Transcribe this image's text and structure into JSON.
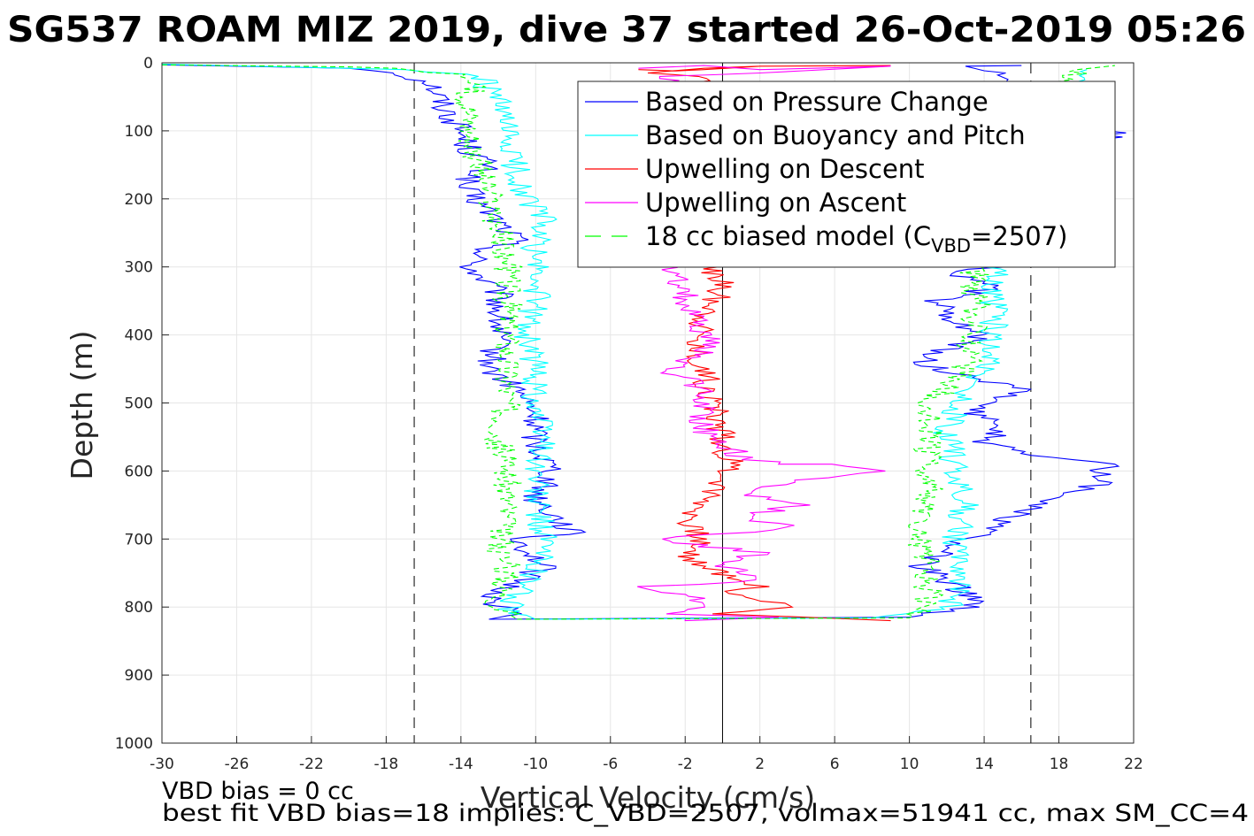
{
  "chart_data": {
    "type": "line",
    "title": "SG537 ROAM MIZ 2019, dive 37 started 26-Oct-2019 05:26",
    "xlabel": "Vertical Velocity (cm/s)",
    "ylabel": "Depth (m)",
    "xlim": [
      -30,
      22
    ],
    "ylim": [
      0,
      1000
    ],
    "y_reversed": true,
    "grid": true,
    "legend_position": "top-right",
    "xticks": [
      "-30",
      "-26",
      "-22",
      "-18",
      "-14",
      "-10",
      "-6",
      "-2",
      "2",
      "6",
      "10",
      "14",
      "18",
      "22"
    ],
    "yticks": [
      "0",
      "100",
      "200",
      "300",
      "400",
      "500",
      "600",
      "700",
      "800",
      "900",
      "1000"
    ],
    "reference_lines": {
      "dashed_x": [
        -16.5,
        16.5
      ],
      "solid_x": [
        0
      ]
    },
    "legend": {
      "items": [
        {
          "label": "Based on Pressure Change",
          "color": "#0000ff",
          "dash": "solid"
        },
        {
          "label": "Based on Buoyancy and Pitch",
          "color": "#00ffff",
          "dash": "solid"
        },
        {
          "label": "Upwelling on Descent",
          "color": "#ff0000",
          "dash": "solid"
        },
        {
          "label": "Upwelling on Ascent",
          "color": "#ff00ff",
          "dash": "solid"
        },
        {
          "label": "18 cc biased model (C",
          "sub": "VBD",
          "suffix": "=2507)",
          "color": "#00ff00",
          "dash": "dashed"
        }
      ]
    },
    "series": [
      {
        "name": "Based on Pressure Change",
        "color": "#0000ff",
        "segments": [
          {
            "x": [
              -30,
              -20,
              -17.5,
              -15.5,
              -15,
              -14,
              -13.5,
              -12.5,
              -14,
              -12.5,
              -11,
              -13,
              -13.5,
              -12,
              -12,
              -12.5,
              -11,
              -10,
              -10,
              -9,
              -10,
              -8,
              -11,
              -9.5,
              -11.5,
              -12.5,
              -11,
              -12.5
            ],
            "y": [
              3,
              8,
              15,
              30,
              60,
              100,
              130,
              150,
              180,
              220,
              260,
              280,
              300,
              340,
              400,
              450,
              480,
              520,
              560,
              600,
              640,
              690,
              700,
              740,
              770,
              790,
              810,
              818
            ]
          },
          {
            "x": [
              -12.5,
              10,
              13.5,
              13,
              12,
              10.5,
              11.5,
              12,
              13,
              14,
              16,
              20,
              20.5,
              17,
              14,
              15,
              13,
              14.5,
              16,
              13,
              10.5,
              12,
              14,
              12,
              11.5,
              14.5,
              12.5,
              14.5,
              17,
              21,
              14.5,
              14.5,
              13,
              16
            ],
            "y": [
              818,
              815,
              800,
              780,
              760,
              740,
              730,
              710,
              700,
              690,
              660,
              620,
              590,
              580,
              560,
              530,
              510,
              495,
              480,
              460,
              440,
              420,
              400,
              380,
              350,
              330,
              310,
              300,
              200,
              100,
              40,
              15,
              5,
              4
            ]
          }
        ]
      },
      {
        "name": "Based on Buoyancy and Pitch",
        "color": "#00ffff",
        "segments": [
          {
            "x": [
              -30,
              -17,
              -13,
              -12,
              -11.5,
              -11,
              -10.5,
              -9.5,
              -10,
              -10,
              -10,
              -10.5,
              -10,
              -10,
              -9.5,
              -10,
              -10,
              -9.5,
              -10,
              -11.5,
              -10
            ],
            "y": [
              2,
              10,
              20,
              60,
              120,
              160,
              200,
              230,
              260,
              300,
              350,
              400,
              450,
              500,
              560,
              600,
              650,
              700,
              750,
              800,
              818
            ]
          },
          {
            "x": [
              -10,
              8,
              12,
              13,
              12.5,
              13,
              12.5,
              12,
              12.5,
              13,
              14,
              14.5,
              14.5,
              14.5,
              14.5,
              14.5,
              16,
              19.5
            ],
            "y": [
              818,
              816,
              800,
              750,
              700,
              650,
              600,
              550,
              500,
              480,
              450,
              400,
              350,
              320,
              300,
              200,
              100,
              10
            ]
          }
        ]
      },
      {
        "name": "Upwelling on Descent",
        "color": "#ff0000",
        "segments": [
          {
            "x": [
              -4.5,
              -2.5,
              -1,
              2,
              9,
              2,
              -1,
              -4,
              -1,
              -1,
              0,
              -0.5,
              -1,
              -1.5,
              -1,
              -0.5,
              0,
              0.5,
              -0.5,
              -1,
              -2,
              -1,
              -2,
              -1,
              1,
              2,
              0,
              4,
              0,
              9
            ],
            "y": [
              10,
              12,
              10,
              5,
              4,
              5,
              8,
              15,
              20,
              300,
              320,
              360,
              380,
              420,
              450,
              500,
              550,
              600,
              630,
              650,
              680,
              700,
              720,
              740,
              760,
              770,
              780,
              800,
              810,
              820
            ]
          }
        ]
      },
      {
        "name": "Upwelling on Ascent",
        "color": "#ff00ff",
        "segments": [
          {
            "x": [
              -4.5,
              -1,
              2,
              9,
              2,
              -3,
              -3,
              -2,
              -2,
              -1,
              -0.5,
              -3,
              -1,
              -1,
              -1,
              0,
              1,
              3,
              6,
              8,
              5,
              3,
              1,
              4,
              1,
              4,
              1,
              -4,
              2,
              0,
              2,
              -4,
              -1,
              -1,
              -3,
              3,
              -2,
              -2
            ],
            "y": [
              8,
              4,
              10,
              5,
              15,
              20,
              310,
              330,
              360,
              400,
              420,
              450,
              480,
              520,
              540,
              560,
              580,
              590,
              590,
              600,
              610,
              620,
              630,
              650,
              670,
              680,
              690,
              700,
              720,
              740,
              760,
              770,
              790,
              800,
              810,
              815,
              820,
              818
            ]
          }
        ]
      },
      {
        "name": "18 cc biased model (CVBD=2507)",
        "color": "#00ff00",
        "dash": "dashed",
        "segments": [
          {
            "x": [
              -30,
              -20,
              -17.5,
              -13.5,
              -13.5,
              -13.5,
              -13,
              -12.5,
              -12,
              -11.5,
              -11.5,
              -11.5,
              -11.5,
              -11.5,
              -12,
              -11.5,
              -11.5,
              -12,
              -11.5,
              -12,
              -11
            ],
            "y": [
              3,
              6,
              8,
              20,
              60,
              100,
              150,
              200,
              250,
              300,
              350,
              400,
              450,
              500,
              560,
              600,
              650,
              700,
              750,
              800,
              818
            ]
          },
          {
            "x": [
              -11,
              10,
              11,
              11,
              10.5,
              11,
              11,
              11,
              11,
              11,
              12,
              13,
              13.5,
              13.5,
              13.5,
              13.5,
              14,
              18,
              18,
              19,
              21
            ],
            "y": [
              818,
              816,
              800,
              750,
              700,
              650,
              600,
              550,
              520,
              500,
              480,
              450,
              400,
              350,
              320,
              300,
              200,
              100,
              30,
              10,
              4
            ]
          }
        ]
      }
    ]
  },
  "notes": {
    "line1": "VBD bias = 0 cc",
    "line2": "best fit VBD bias=18 implies: C_VBD=2507, volmax=51941 cc, max SM_CC=4"
  }
}
